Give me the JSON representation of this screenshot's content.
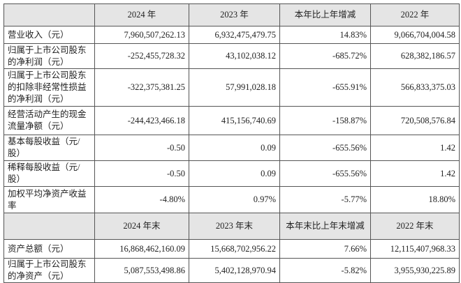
{
  "table": {
    "header": [
      "2024 年",
      "2023 年",
      "本年比上年增减",
      "2022 年"
    ],
    "rows": [
      [
        "营业收入（元）",
        "7,960,507,262.13",
        "6,932,475,479.75",
        "14.83%",
        "9,066,704,004.58"
      ],
      [
        "归属于上市公司股东的净利润（元）",
        "-252,455,728.32",
        "43,102,038.12",
        "-685.72%",
        "628,382,186.57"
      ],
      [
        "归属于上市公司股东的扣除非经常性损益的净利润（元）",
        "-322,375,381.25",
        "57,991,028.18",
        "-655.91%",
        "566,833,375.03"
      ],
      [
        "经营活动产生的现金流量净额（元）",
        "-244,423,466.18",
        "415,156,740.69",
        "-158.87%",
        "720,508,576.84"
      ],
      [
        "基本每股收益（元/股）",
        "-0.50",
        "0.09",
        "-655.56%",
        "1.42"
      ],
      [
        "稀释每股收益（元/股）",
        "-0.50",
        "0.09",
        "-655.56%",
        "1.42"
      ],
      [
        "加权平均净资产收益率",
        "-4.80%",
        "0.97%",
        "-5.77%",
        "18.80%"
      ]
    ],
    "header2": [
      "2024 年末",
      "2023 年末",
      "本年末比上年末增减",
      "2022 年末"
    ],
    "rows2": [
      [
        "资产总额（元）",
        "16,868,462,160.09",
        "15,668,702,956.22",
        "7.66%",
        "12,115,407,968.33"
      ],
      [
        "归属于上市公司股东的净资产（元）",
        "5,087,553,498.86",
        "5,402,128,970.94",
        "-5.82%",
        "3,955,930,225.89"
      ]
    ]
  }
}
